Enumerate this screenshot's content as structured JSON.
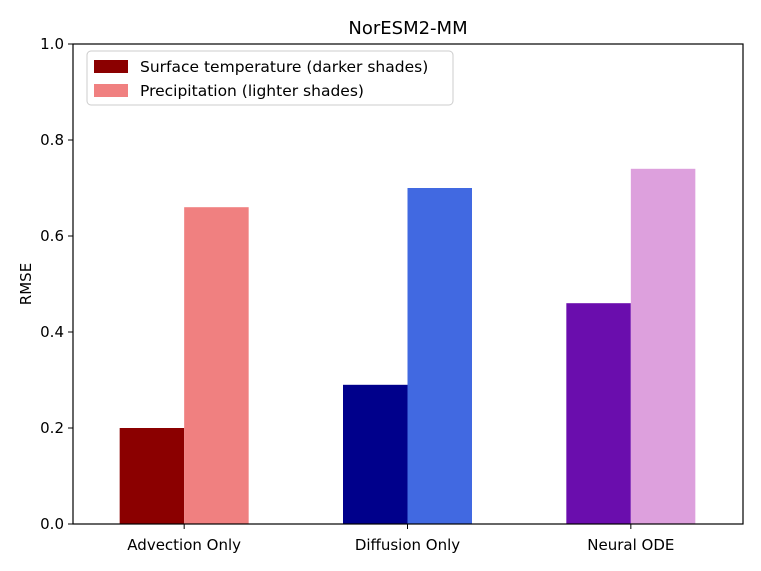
{
  "chart_data": {
    "type": "bar",
    "title": "NorESM2-MM",
    "xlabel": "",
    "ylabel": "RMSE",
    "ylim": [
      0.0,
      1.0
    ],
    "yticks": [
      0.0,
      0.2,
      0.4,
      0.6,
      0.8,
      1.0
    ],
    "ytick_labels": [
      "0.0",
      "0.2",
      "0.4",
      "0.6",
      "0.8",
      "1.0"
    ],
    "categories": [
      "Advection Only",
      "Diffusion Only",
      "Neural ODE"
    ],
    "series": [
      {
        "name": "Surface temperature (darker shades)",
        "values": [
          0.2,
          0.29,
          0.46
        ],
        "colors": [
          "#8b0000",
          "#00008b",
          "#6a0dad"
        ]
      },
      {
        "name": "Precipitation (lighter shades)",
        "values": [
          0.66,
          0.7,
          0.74
        ],
        "colors": [
          "#f08080",
          "#4169e1",
          "#dda0dd"
        ]
      }
    ],
    "legend": {
      "placement": "top-left",
      "entries": [
        {
          "label": "Surface temperature (darker shades)",
          "color": "#8b0000"
        },
        {
          "label": "Precipitation (lighter shades)",
          "color": "#f08080"
        }
      ]
    },
    "grid": false
  }
}
